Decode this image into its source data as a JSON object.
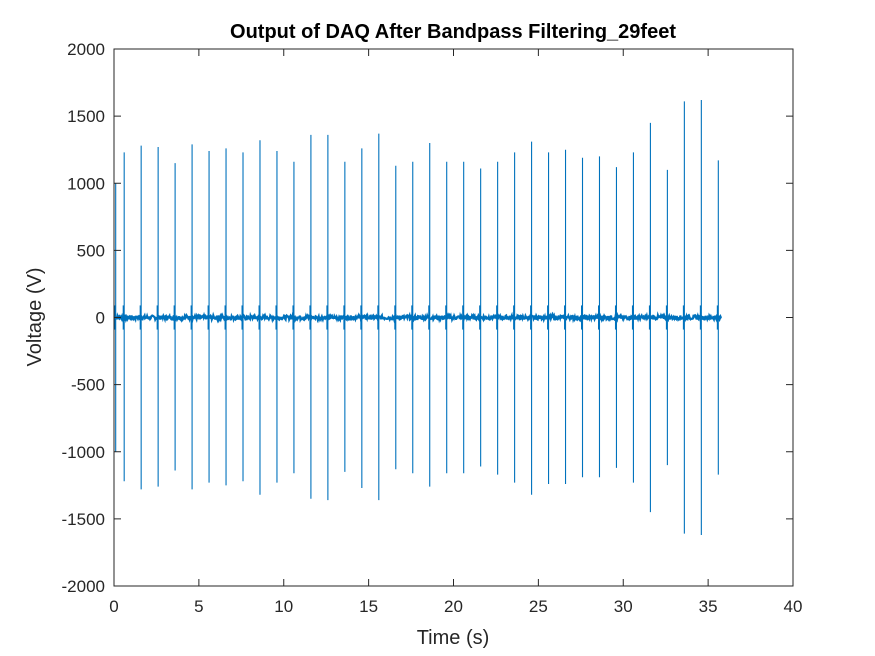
{
  "chart_data": {
    "type": "line",
    "title": "Output of DAQ After Bandpass Filtering_29feet",
    "xlabel": "Time (s)",
    "ylabel": "Voltage (V)",
    "xlim": [
      0,
      40
    ],
    "ylim": [
      -2000,
      2000
    ],
    "xticks": [
      0,
      5,
      10,
      15,
      20,
      25,
      30,
      35,
      40
    ],
    "yticks": [
      -2000,
      -1500,
      -1000,
      -500,
      0,
      500,
      1000,
      1500,
      2000
    ],
    "grid": false,
    "legend": "none",
    "series_color": "#0072BD",
    "series": [
      {
        "x_end": 35.8,
        "baseline_noise": 15,
        "pulses": [
          {
            "t": 0.1,
            "max": 1000,
            "min": -1000
          },
          {
            "t": 0.6,
            "max": 1230,
            "min": -1220
          },
          {
            "t": 1.6,
            "max": 1280,
            "min": -1280
          },
          {
            "t": 2.6,
            "max": 1270,
            "min": -1260
          },
          {
            "t": 3.6,
            "max": 1150,
            "min": -1140
          },
          {
            "t": 4.6,
            "max": 1290,
            "min": -1280
          },
          {
            "t": 5.6,
            "max": 1240,
            "min": -1230
          },
          {
            "t": 6.6,
            "max": 1260,
            "min": -1250
          },
          {
            "t": 7.6,
            "max": 1230,
            "min": -1220
          },
          {
            "t": 8.6,
            "max": 1320,
            "min": -1320
          },
          {
            "t": 9.6,
            "max": 1240,
            "min": -1230
          },
          {
            "t": 10.6,
            "max": 1160,
            "min": -1160
          },
          {
            "t": 11.6,
            "max": 1360,
            "min": -1350
          },
          {
            "t": 12.6,
            "max": 1360,
            "min": -1360
          },
          {
            "t": 13.6,
            "max": 1160,
            "min": -1150
          },
          {
            "t": 14.6,
            "max": 1260,
            "min": -1270
          },
          {
            "t": 15.6,
            "max": 1370,
            "min": -1360
          },
          {
            "t": 16.6,
            "max": 1130,
            "min": -1130
          },
          {
            "t": 17.6,
            "max": 1160,
            "min": -1160
          },
          {
            "t": 18.6,
            "max": 1300,
            "min": -1260
          },
          {
            "t": 19.6,
            "max": 1160,
            "min": -1160
          },
          {
            "t": 20.6,
            "max": 1160,
            "min": -1160
          },
          {
            "t": 21.6,
            "max": 1110,
            "min": -1110
          },
          {
            "t": 22.6,
            "max": 1160,
            "min": -1170
          },
          {
            "t": 23.6,
            "max": 1230,
            "min": -1230
          },
          {
            "t": 24.6,
            "max": 1310,
            "min": -1320
          },
          {
            "t": 25.6,
            "max": 1230,
            "min": -1240
          },
          {
            "t": 26.6,
            "max": 1250,
            "min": -1240
          },
          {
            "t": 27.6,
            "max": 1190,
            "min": -1190
          },
          {
            "t": 28.6,
            "max": 1200,
            "min": -1190
          },
          {
            "t": 29.6,
            "max": 1120,
            "min": -1120
          },
          {
            "t": 30.6,
            "max": 1230,
            "min": -1230
          },
          {
            "t": 31.6,
            "max": 1450,
            "min": -1450
          },
          {
            "t": 32.6,
            "max": 1100,
            "min": -1100
          },
          {
            "t": 33.6,
            "max": 1610,
            "min": -1610
          },
          {
            "t": 34.6,
            "max": 1620,
            "min": -1620
          },
          {
            "t": 35.6,
            "max": 1170,
            "min": -1170
          }
        ]
      }
    ]
  }
}
